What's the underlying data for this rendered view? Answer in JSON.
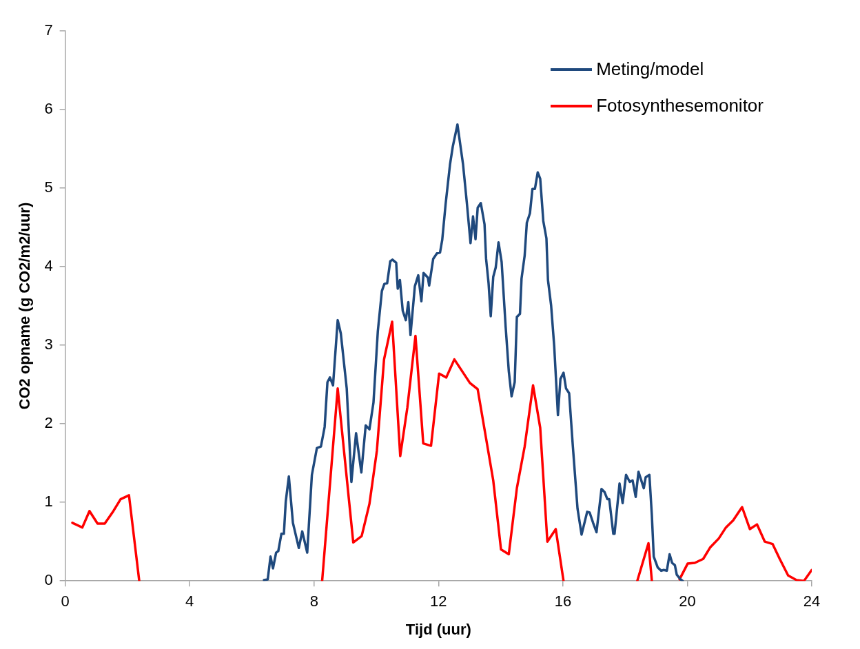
{
  "chart_data": {
    "type": "line",
    "xlabel": "Tijd (uur)",
    "ylabel": "CO2 opname (g CO2/m2/uur)",
    "xlim": [
      0,
      24
    ],
    "xticks": [
      0,
      4,
      8,
      12,
      16,
      20,
      24
    ],
    "ylim": [
      0,
      7
    ],
    "yticks": [
      0,
      1,
      2,
      3,
      4,
      5,
      6,
      7
    ],
    "grid": false,
    "legend": "top right",
    "marker": "none",
    "line_style": "solid",
    "series": [
      {
        "name": "Meting/model",
        "color": "#1f497d",
        "x": [
          6.39,
          6.51,
          6.6,
          6.68,
          6.78,
          6.85,
          6.95,
          7.03,
          7.09,
          7.19,
          7.32,
          7.51,
          7.62,
          7.78,
          7.93,
          8.09,
          8.22,
          8.34,
          8.43,
          8.51,
          8.61,
          8.76,
          8.86,
          9.05,
          9.2,
          9.35,
          9.52,
          9.66,
          9.78,
          9.91,
          10.05,
          10.18,
          10.26,
          10.35,
          10.45,
          10.52,
          10.64,
          10.69,
          10.76,
          10.85,
          10.95,
          11.03,
          11.1,
          11.24,
          11.35,
          11.45,
          11.52,
          11.66,
          11.7,
          11.83,
          11.95,
          12.05,
          12.12,
          12.23,
          12.37,
          12.46,
          12.61,
          12.79,
          12.91,
          13.03,
          13.11,
          13.19,
          13.26,
          13.36,
          13.48,
          13.53,
          13.61,
          13.68,
          13.76,
          13.84,
          13.93,
          14.03,
          14.16,
          14.26,
          14.35,
          14.45,
          14.52,
          14.62,
          14.67,
          14.77,
          14.84,
          14.94,
          15.02,
          15.1,
          15.19,
          15.27,
          15.37,
          15.47,
          15.52,
          15.62,
          15.72,
          15.84,
          15.92,
          16.02,
          16.1,
          16.2,
          16.32,
          16.47,
          16.6,
          16.78,
          16.86,
          16.97,
          17.08,
          17.24,
          17.34,
          17.43,
          17.49,
          17.62,
          17.66,
          17.82,
          17.92,
          18.03,
          18.15,
          18.24,
          18.34,
          18.43,
          18.6,
          18.66,
          18.78,
          18.86,
          18.92,
          19.05,
          19.16,
          19.24,
          19.34,
          19.43,
          19.51,
          19.6,
          19.66,
          19.78,
          19.85
        ],
        "values": [
          0.01,
          0.02,
          0.31,
          0.16,
          0.36,
          0.38,
          0.6,
          0.6,
          1.01,
          1.33,
          0.74,
          0.42,
          0.63,
          0.36,
          1.35,
          1.69,
          1.71,
          1.96,
          2.53,
          2.59,
          2.49,
          3.32,
          3.15,
          2.45,
          1.26,
          1.88,
          1.38,
          1.98,
          1.93,
          2.27,
          3.18,
          3.69,
          3.78,
          3.79,
          4.07,
          4.09,
          4.05,
          3.72,
          3.83,
          3.44,
          3.32,
          3.55,
          3.13,
          3.75,
          3.89,
          3.56,
          3.92,
          3.86,
          3.76,
          4.1,
          4.17,
          4.18,
          4.34,
          4.8,
          5.3,
          5.53,
          5.81,
          5.3,
          4.82,
          4.3,
          4.64,
          4.35,
          4.75,
          4.81,
          4.54,
          4.1,
          3.79,
          3.37,
          3.87,
          3.99,
          4.31,
          4.06,
          3.23,
          2.67,
          2.35,
          2.53,
          3.36,
          3.4,
          3.85,
          4.14,
          4.56,
          4.68,
          4.99,
          4.99,
          5.2,
          5.12,
          4.58,
          4.36,
          3.83,
          3.51,
          2.99,
          2.11,
          2.57,
          2.65,
          2.45,
          2.39,
          1.71,
          0.92,
          0.59,
          0.88,
          0.87,
          0.74,
          0.62,
          1.17,
          1.13,
          1.04,
          1.04,
          0.6,
          0.6,
          1.24,
          0.99,
          1.35,
          1.26,
          1.28,
          1.07,
          1.39,
          1.18,
          1.32,
          1.35,
          0.83,
          0.31,
          0.17,
          0.13,
          0.14,
          0.13,
          0.34,
          0.23,
          0.2,
          0.08,
          0.02,
          0
        ]
      },
      {
        "name": "Fotosynthesemonitor",
        "color": "#ff0000",
        "x": [
          0.23,
          0.55,
          0.78,
          1.04,
          1.27,
          1.55,
          1.78,
          2.05,
          2.38,
          5.0,
          8.26,
          8.76,
          9.26,
          9.53,
          9.78,
          10.02,
          10.25,
          10.51,
          10.77,
          11.0,
          11.26,
          11.51,
          11.76,
          12.02,
          12.25,
          12.51,
          13.01,
          13.26,
          13.76,
          14.01,
          14.26,
          14.52,
          14.77,
          15.04,
          15.27,
          15.5,
          15.77,
          16.02,
          17.0,
          18.39,
          18.75,
          18.86,
          19.3,
          19.75,
          20.01,
          20.24,
          20.51,
          20.74,
          21.01,
          21.24,
          21.47,
          21.76,
          22.01,
          22.24,
          22.49,
          22.74,
          22.97,
          23.24,
          23.51,
          23.75,
          24.0
        ],
        "values": [
          0.74,
          0.68,
          0.89,
          0.73,
          0.73,
          0.89,
          1.04,
          1.09,
          0,
          null,
          0,
          2.45,
          0.49,
          0.57,
          0.98,
          1.66,
          2.82,
          3.3,
          1.59,
          2.21,
          3.12,
          1.75,
          1.72,
          2.64,
          2.59,
          2.82,
          2.52,
          2.44,
          1.28,
          0.4,
          0.34,
          1.18,
          1.71,
          2.49,
          1.95,
          0.5,
          0.66,
          0,
          null,
          0,
          0.48,
          0,
          null,
          0.02,
          0.22,
          0.23,
          0.28,
          0.43,
          0.54,
          0.68,
          0.77,
          0.94,
          0.66,
          0.72,
          0.5,
          0.47,
          0.28,
          0.07,
          0.01,
          0,
          0.14
        ]
      }
    ]
  }
}
